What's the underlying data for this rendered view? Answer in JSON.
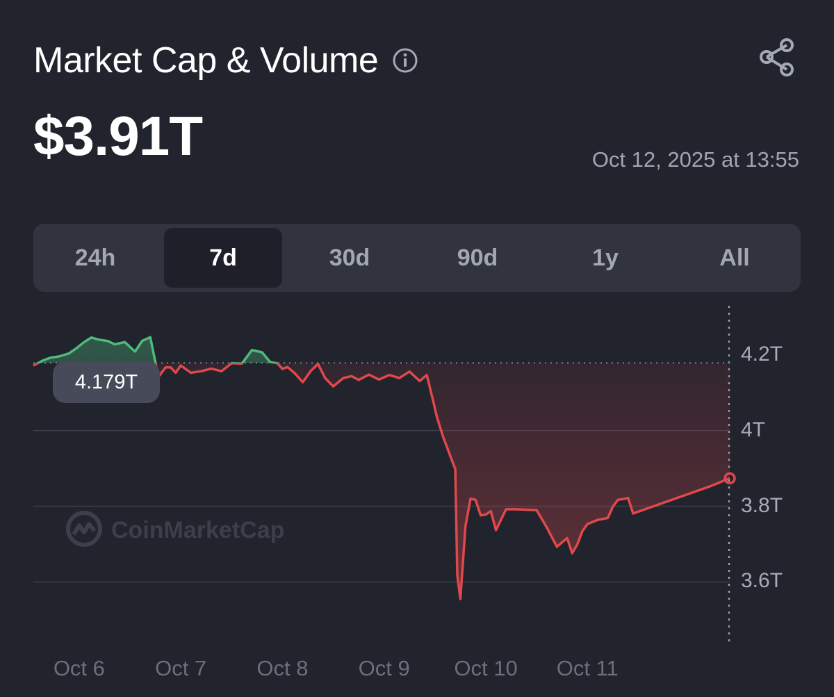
{
  "header": {
    "title": "Market Cap & Volume",
    "value": "$3.91T",
    "timestamp": "Oct 12, 2025 at 13:55"
  },
  "tabs": [
    {
      "label": "24h",
      "active": false
    },
    {
      "label": "7d",
      "active": true
    },
    {
      "label": "30d",
      "active": false
    },
    {
      "label": "90d",
      "active": false
    },
    {
      "label": "1y",
      "active": false
    },
    {
      "label": "All",
      "active": false
    }
  ],
  "icons": {
    "info": "info-icon",
    "share": "share-icon",
    "watermark_logo": "coinmarketcap-logo-icon"
  },
  "colors": {
    "up": "#4dbb7d",
    "down": "#e0494b",
    "background": "#21232d"
  },
  "watermark": "CoinMarketCap",
  "chart_data": {
    "type": "area",
    "baseline": 4.179,
    "baseline_label": "4.179T",
    "y_ticks": [
      {
        "value": 4.2,
        "label": "4.2T"
      },
      {
        "value": 4.0,
        "label": "4T"
      },
      {
        "value": 3.8,
        "label": "3.8T"
      },
      {
        "value": 3.6,
        "label": "3.6T"
      }
    ],
    "x_ticks": [
      {
        "value": 6,
        "label": "Oct 6"
      },
      {
        "value": 7,
        "label": "Oct 7"
      },
      {
        "value": 8,
        "label": "Oct 8"
      },
      {
        "value": 9,
        "label": "Oct 9"
      },
      {
        "value": 10,
        "label": "Oct 10"
      },
      {
        "value": 11,
        "label": "Oct 11"
      }
    ],
    "xlim": [
      5.55,
      12.4
    ],
    "ylim": [
      3.43,
      4.33
    ],
    "grid": true,
    "series": [
      {
        "x": [
          5.55,
          5.65,
          5.72,
          5.8,
          5.9,
          5.98,
          6.05,
          6.12,
          6.2,
          6.28,
          6.35,
          6.45,
          6.55,
          6.62,
          6.7,
          6.78,
          6.85,
          6.9,
          6.95,
          7.0,
          7.1,
          7.2,
          7.3,
          7.4,
          7.5,
          7.6,
          7.7,
          7.8,
          7.88,
          7.95,
          8.0,
          8.05,
          8.12,
          8.2,
          8.28,
          8.35,
          8.42,
          8.5,
          8.6,
          8.68,
          8.75,
          8.85,
          8.95,
          9.05,
          9.15,
          9.25,
          9.35,
          9.42,
          9.48,
          9.52,
          9.58,
          9.65,
          9.7,
          9.72,
          9.75,
          9.8,
          9.85,
          9.9,
          9.95,
          10.0,
          10.05,
          10.1,
          10.2,
          10.3,
          10.4,
          10.5,
          10.6,
          10.7,
          10.8,
          10.85,
          10.9,
          10.95,
          11.0,
          11.1,
          11.2,
          11.25,
          11.3,
          11.35,
          11.4,
          11.45,
          12.2,
          12.4
        ],
        "y": [
          4.172,
          4.186,
          4.193,
          4.196,
          4.204,
          4.219,
          4.234,
          4.246,
          4.24,
          4.237,
          4.228,
          4.234,
          4.209,
          4.237,
          4.247,
          4.142,
          4.167,
          4.167,
          4.153,
          4.172,
          4.153,
          4.157,
          4.164,
          4.157,
          4.178,
          4.177,
          4.213,
          4.207,
          4.181,
          4.178,
          4.163,
          4.168,
          4.152,
          4.128,
          4.158,
          4.176,
          4.139,
          4.117,
          4.139,
          4.144,
          4.134,
          4.148,
          4.135,
          4.147,
          4.139,
          4.156,
          4.131,
          4.147,
          4.081,
          4.036,
          3.984,
          3.934,
          3.898,
          3.617,
          3.555,
          3.747,
          3.82,
          3.817,
          3.776,
          3.778,
          3.787,
          3.737,
          3.792,
          3.792,
          3.791,
          3.79,
          3.744,
          3.693,
          3.716,
          3.676,
          3.699,
          3.734,
          3.753,
          3.764,
          3.769,
          3.799,
          3.817,
          3.819,
          3.822,
          3.781,
          3.852,
          3.874
        ]
      }
    ]
  }
}
